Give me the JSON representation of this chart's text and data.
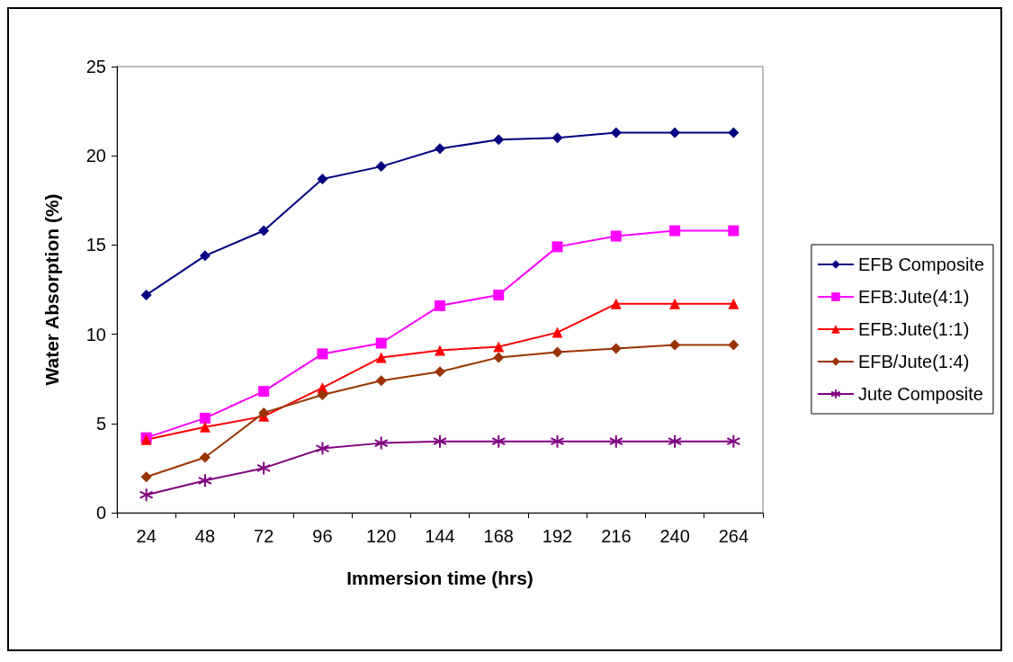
{
  "chart_data": {
    "type": "line",
    "xlabel": "Immersion time (hrs)",
    "ylabel": "Water Absorption (%)",
    "categories": [
      "24",
      "48",
      "72",
      "96",
      "120",
      "144",
      "168",
      "192",
      "216",
      "240",
      "264"
    ],
    "ylim": [
      0,
      25
    ],
    "yticks": [
      0,
      5,
      10,
      15,
      20,
      25
    ],
    "grid": false,
    "legend": "right",
    "line_style": "solid",
    "series": [
      {
        "name": "EFB Composite",
        "color": "#000080",
        "marker": "diamond",
        "values": [
          12.2,
          14.4,
          15.8,
          18.7,
          19.4,
          20.4,
          20.9,
          21.0,
          21.3,
          21.3,
          21.3
        ]
      },
      {
        "name": "EFB:Jute(4:1)",
        "color": "#ff00ff",
        "marker": "square",
        "values": [
          4.2,
          5.3,
          6.8,
          8.9,
          9.5,
          11.6,
          12.2,
          14.9,
          15.5,
          15.8,
          15.8
        ]
      },
      {
        "name": "EFB:Jute(1:1)",
        "color": "#ff0000",
        "marker": "triangle",
        "values": [
          4.1,
          4.8,
          5.4,
          7.0,
          8.7,
          9.1,
          9.3,
          10.1,
          11.7,
          11.7,
          11.7
        ]
      },
      {
        "name": "EFB/Jute(1:4)",
        "color": "#993300",
        "marker": "diamond",
        "values": [
          2.0,
          3.1,
          5.6,
          6.6,
          7.4,
          7.9,
          8.7,
          9.0,
          9.2,
          9.4,
          9.4
        ]
      },
      {
        "name": "Jute Composite",
        "color": "#800080",
        "marker": "cross",
        "values": [
          1.0,
          1.8,
          2.5,
          3.6,
          3.9,
          4.0,
          4.0,
          4.0,
          4.0,
          4.0,
          4.0
        ]
      }
    ]
  }
}
